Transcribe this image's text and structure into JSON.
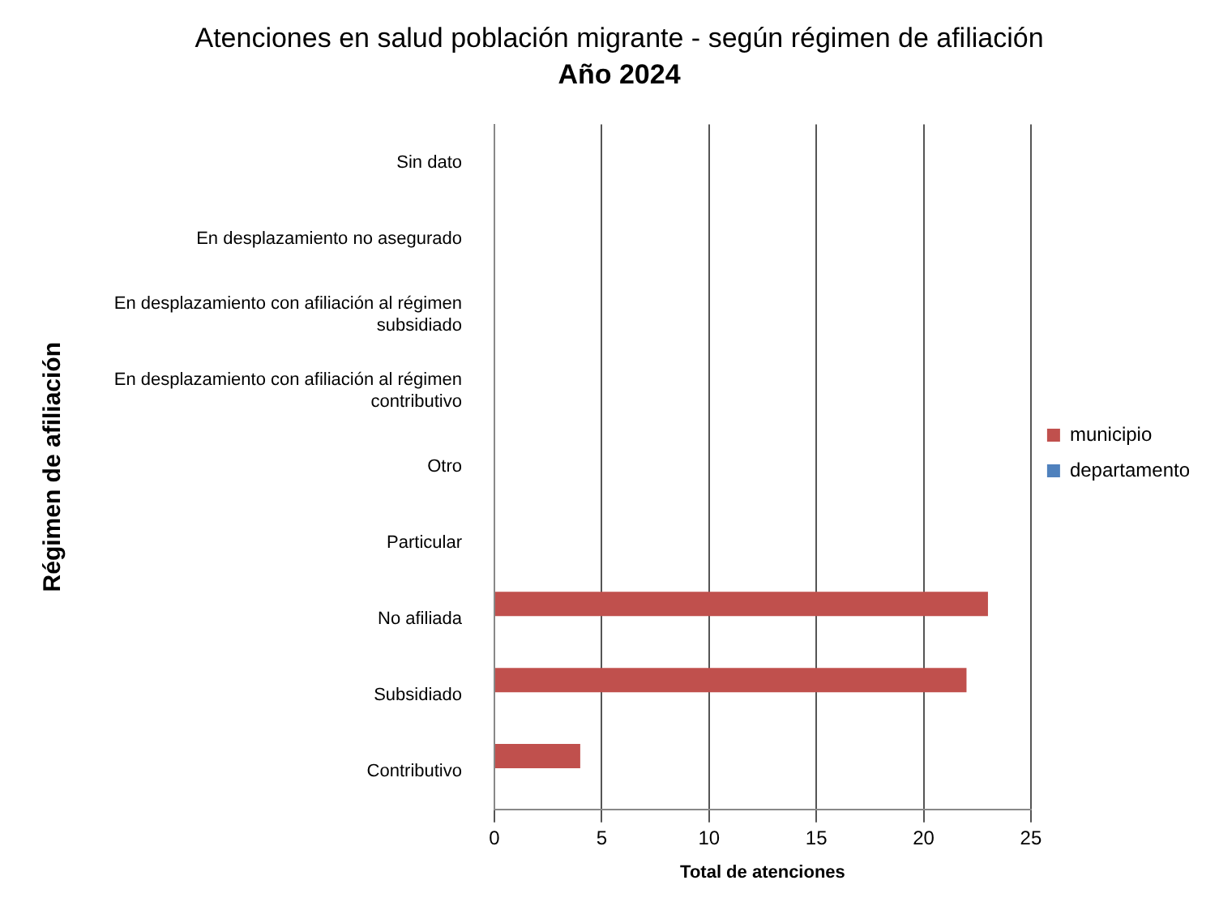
{
  "chart_data": {
    "type": "bar",
    "orientation": "horizontal",
    "title": "Atenciones en salud población migrante - según régimen de afiliación",
    "subtitle": "Año 2024",
    "xlabel": "Total de atenciones",
    "ylabel": "Régimen de afiliación",
    "categories": [
      "Sin dato",
      "En desplazamiento no asegurado",
      "En desplazamiento con afiliación al régimen subsidiado",
      "En desplazamiento con afiliación al régimen contributivo",
      "Otro",
      "Particular",
      "No afiliada",
      "Subsidiado",
      "Contributivo"
    ],
    "series": [
      {
        "name": "municipio",
        "color": "#c0504d",
        "values": [
          null,
          null,
          null,
          null,
          null,
          null,
          23,
          22,
          4
        ]
      },
      {
        "name": "departamento",
        "color": "#4f81bd",
        "values": [
          null,
          null,
          null,
          null,
          null,
          null,
          null,
          null,
          null
        ]
      }
    ],
    "xlim": [
      0,
      25
    ],
    "xticks": [
      0,
      5,
      10,
      15,
      20,
      25
    ],
    "grid": "x",
    "legend": "right"
  }
}
